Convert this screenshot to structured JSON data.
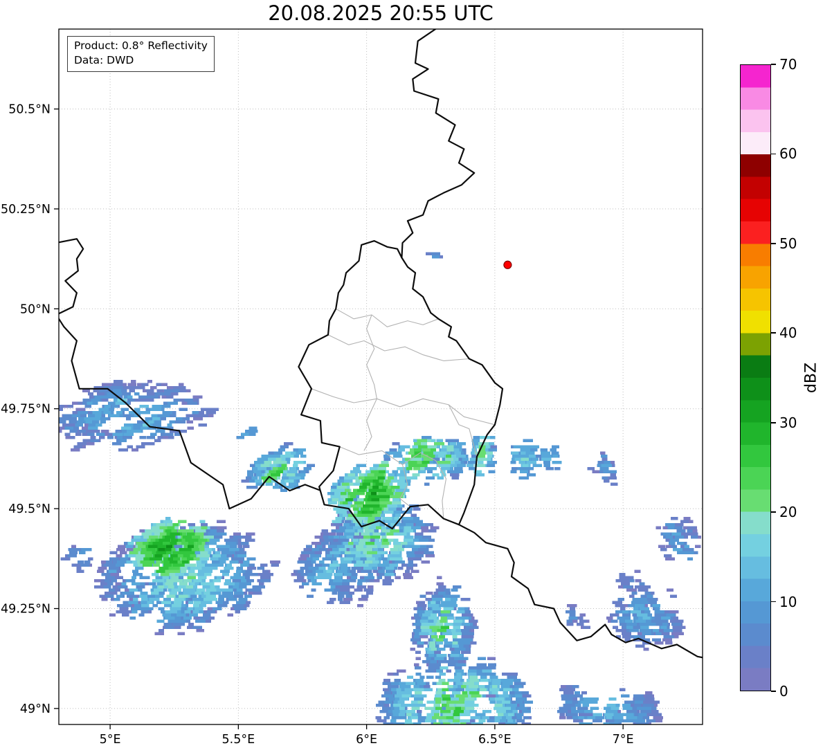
{
  "title": "20.08.2025 20:55 UTC",
  "annotation": {
    "line1": "Product: 0.8° Reflectivity",
    "line2": "Data: DWD"
  },
  "colorbar": {
    "label": "dBZ",
    "min": 0,
    "max": 70,
    "level_step": 2.5,
    "ticks": [
      0,
      10,
      20,
      30,
      40,
      50,
      60,
      70
    ],
    "colors": [
      "#7a7cc3",
      "#6a80c8",
      "#5b8bce",
      "#5598d4",
      "#58a8da",
      "#66bde0",
      "#74d0e0",
      "#85ddcb",
      "#68dd72",
      "#4bd455",
      "#32c73e",
      "#20b52c",
      "#15a321",
      "#0e9019",
      "#0a7c13",
      "#7ca202",
      "#f0e000",
      "#f6c400",
      "#f8a300",
      "#f87d00",
      "#fb2020",
      "#e60303",
      "#c30101",
      "#8e0000",
      "#fcecf9",
      "#fbc3ef",
      "#f98ae4",
      "#f525cf"
    ]
  },
  "axes": {
    "lat_ticks": [
      {
        "value": 50.5,
        "label": "50.5°N"
      },
      {
        "value": 50.25,
        "label": "50.25°N"
      },
      {
        "value": 50.0,
        "label": "50°N"
      },
      {
        "value": 49.75,
        "label": "49.75°N"
      },
      {
        "value": 49.5,
        "label": "49.5°N"
      },
      {
        "value": 49.25,
        "label": "49.25°N"
      },
      {
        "value": 49.0,
        "label": "49°N"
      }
    ],
    "lon_ticks": [
      {
        "value": 5.0,
        "label": "5°E"
      },
      {
        "value": 5.5,
        "label": "5.5°E"
      },
      {
        "value": 6.0,
        "label": "6°E"
      },
      {
        "value": 6.5,
        "label": "6.5°E"
      },
      {
        "value": 7.0,
        "label": "7°E"
      }
    ]
  },
  "map": {
    "extent": {
      "lon_min": 4.8,
      "lon_max": 7.31,
      "lat_min": 48.96,
      "lat_max": 50.7
    },
    "borders_country": [
      {
        "name": "belgium-germany",
        "points": [
          [
            6.28,
            50.705
          ],
          [
            6.2,
            50.67
          ],
          [
            6.19,
            50.615
          ],
          [
            6.24,
            50.6
          ],
          [
            6.18,
            50.575
          ],
          [
            6.185,
            50.545
          ],
          [
            6.28,
            50.525
          ],
          [
            6.27,
            50.49
          ],
          [
            6.345,
            50.46
          ],
          [
            6.32,
            50.42
          ],
          [
            6.38,
            50.4
          ],
          [
            6.36,
            50.365
          ],
          [
            6.42,
            50.34
          ],
          [
            6.37,
            50.31
          ],
          [
            6.3,
            50.29
          ],
          [
            6.24,
            50.27
          ],
          [
            6.22,
            50.235
          ],
          [
            6.16,
            50.22
          ],
          [
            6.18,
            50.19
          ],
          [
            6.14,
            50.165
          ],
          [
            6.137,
            50.128
          ]
        ]
      },
      {
        "name": "luxembourg",
        "points": [
          [
            6.137,
            50.128
          ],
          [
            6.12,
            50.15
          ],
          [
            6.08,
            50.155
          ],
          [
            6.03,
            50.17
          ],
          [
            5.98,
            50.16
          ],
          [
            5.97,
            50.12
          ],
          [
            5.92,
            50.09
          ],
          [
            5.91,
            50.06
          ],
          [
            5.89,
            50.04
          ],
          [
            5.88,
            50.0
          ],
          [
            5.855,
            49.97
          ],
          [
            5.85,
            49.935
          ],
          [
            5.775,
            49.91
          ],
          [
            5.735,
            49.855
          ],
          [
            5.785,
            49.8
          ],
          [
            5.745,
            49.735
          ],
          [
            5.82,
            49.72
          ],
          [
            5.825,
            49.665
          ],
          [
            5.895,
            49.655
          ],
          [
            5.87,
            49.595
          ],
          [
            5.815,
            49.555
          ],
          [
            5.835,
            49.51
          ],
          [
            5.93,
            49.5
          ],
          [
            5.98,
            49.455
          ],
          [
            6.05,
            49.47
          ],
          [
            6.1,
            49.45
          ],
          [
            6.17,
            49.505
          ],
          [
            6.24,
            49.51
          ],
          [
            6.3,
            49.475
          ],
          [
            6.36,
            49.46
          ],
          [
            6.38,
            49.49
          ],
          [
            6.42,
            49.56
          ],
          [
            6.43,
            49.63
          ],
          [
            6.47,
            49.685
          ],
          [
            6.5,
            49.71
          ],
          [
            6.52,
            49.76
          ],
          [
            6.53,
            49.8
          ],
          [
            6.5,
            49.815
          ],
          [
            6.45,
            49.86
          ],
          [
            6.4,
            49.875
          ],
          [
            6.35,
            49.92
          ],
          [
            6.32,
            49.93
          ],
          [
            6.33,
            49.955
          ],
          [
            6.28,
            49.975
          ],
          [
            6.25,
            49.99
          ],
          [
            6.22,
            50.03
          ],
          [
            6.18,
            50.05
          ],
          [
            6.19,
            50.09
          ],
          [
            6.16,
            50.105
          ],
          [
            6.137,
            50.128
          ]
        ]
      },
      {
        "name": "france-belgium",
        "points": [
          [
            4.79,
            50.165
          ],
          [
            4.87,
            50.175
          ],
          [
            4.895,
            50.15
          ],
          [
            4.87,
            50.125
          ],
          [
            4.875,
            50.095
          ],
          [
            4.825,
            50.07
          ],
          [
            4.87,
            50.04
          ],
          [
            4.855,
            50.005
          ],
          [
            4.79,
            49.985
          ],
          [
            4.82,
            49.955
          ],
          [
            4.87,
            49.92
          ],
          [
            4.85,
            49.87
          ],
          [
            4.88,
            49.8
          ],
          [
            4.99,
            49.8
          ],
          [
            5.06,
            49.765
          ],
          [
            5.155,
            49.705
          ],
          [
            5.27,
            49.695
          ],
          [
            5.315,
            49.615
          ],
          [
            5.44,
            49.56
          ],
          [
            5.465,
            49.5
          ],
          [
            5.55,
            49.525
          ],
          [
            5.62,
            49.58
          ],
          [
            5.7,
            49.545
          ],
          [
            5.76,
            49.56
          ],
          [
            5.818,
            49.546
          ]
        ]
      },
      {
        "name": "france-germany",
        "points": [
          [
            6.36,
            49.46
          ],
          [
            6.42,
            49.44
          ],
          [
            6.465,
            49.415
          ],
          [
            6.55,
            49.4
          ],
          [
            6.575,
            49.365
          ],
          [
            6.565,
            49.33
          ],
          [
            6.63,
            49.3
          ],
          [
            6.655,
            49.26
          ],
          [
            6.73,
            49.25
          ],
          [
            6.755,
            49.215
          ],
          [
            6.82,
            49.17
          ],
          [
            6.875,
            49.18
          ],
          [
            6.93,
            49.21
          ],
          [
            6.955,
            49.185
          ],
          [
            7.01,
            49.165
          ],
          [
            7.06,
            49.175
          ],
          [
            7.15,
            49.15
          ],
          [
            7.21,
            49.16
          ],
          [
            7.29,
            49.13
          ],
          [
            7.33,
            49.125
          ]
        ]
      }
    ],
    "borders_region": [
      [
        [
          5.88,
          50.0
        ],
        [
          5.95,
          49.975
        ],
        [
          6.02,
          49.985
        ],
        [
          6.08,
          49.955
        ],
        [
          6.16,
          49.97
        ],
        [
          6.22,
          49.96
        ],
        [
          6.28,
          49.975
        ]
      ],
      [
        [
          5.85,
          49.935
        ],
        [
          5.93,
          49.91
        ],
        [
          5.99,
          49.92
        ],
        [
          6.07,
          49.895
        ],
        [
          6.15,
          49.905
        ],
        [
          6.22,
          49.885
        ],
        [
          6.3,
          49.87
        ],
        [
          6.4,
          49.875
        ]
      ],
      [
        [
          5.785,
          49.8
        ],
        [
          5.87,
          49.78
        ],
        [
          5.95,
          49.765
        ],
        [
          6.04,
          49.775
        ],
        [
          6.13,
          49.755
        ],
        [
          6.22,
          49.775
        ],
        [
          6.32,
          49.76
        ],
        [
          6.38,
          49.73
        ],
        [
          6.44,
          49.72
        ],
        [
          6.5,
          49.71
        ]
      ],
      [
        [
          6.02,
          49.985
        ],
        [
          6.0,
          49.95
        ],
        [
          6.03,
          49.9
        ],
        [
          6.0,
          49.86
        ],
        [
          6.03,
          49.81
        ],
        [
          6.04,
          49.775
        ]
      ],
      [
        [
          6.04,
          49.775
        ],
        [
          6.0,
          49.72
        ],
        [
          6.02,
          49.68
        ],
        [
          5.99,
          49.645
        ]
      ],
      [
        [
          5.895,
          49.655
        ],
        [
          5.97,
          49.635
        ],
        [
          6.06,
          49.645
        ],
        [
          6.14,
          49.61
        ],
        [
          6.21,
          49.64
        ],
        [
          6.27,
          49.62
        ]
      ],
      [
        [
          6.14,
          49.61
        ],
        [
          6.16,
          49.56
        ],
        [
          6.13,
          49.525
        ],
        [
          6.17,
          49.505
        ]
      ],
      [
        [
          6.27,
          49.62
        ],
        [
          6.31,
          49.575
        ],
        [
          6.295,
          49.52
        ],
        [
          6.3,
          49.475
        ]
      ],
      [
        [
          6.32,
          49.76
        ],
        [
          6.36,
          49.71
        ],
        [
          6.4,
          49.7
        ],
        [
          6.43,
          49.63
        ]
      ]
    ]
  },
  "chart_data": {
    "type": "heatmap",
    "title": "20.08.2025 20:55 UTC",
    "units": "dBZ",
    "value_range": [
      0,
      70
    ],
    "legend_position": "right",
    "grid": true,
    "radar_site": {
      "lon": 6.55,
      "lat": 50.11,
      "color": "#ff0000",
      "edge_color": "#7f0000"
    },
    "echo_clusters": [
      {
        "name": "west-band",
        "center": [
          5.05,
          49.735
        ],
        "rx": 0.3,
        "ry": 0.082,
        "base_dbz": 3,
        "peak_dbz": 16,
        "streaks": 90,
        "seed": 11,
        "len": 1.25
      },
      {
        "name": "west-small-cell",
        "center": [
          5.52,
          49.685
        ],
        "rx": 0.04,
        "ry": 0.016,
        "base_dbz": 7,
        "peak_dbz": 12,
        "streaks": 6,
        "seed": 12,
        "len": 0.5
      },
      {
        "name": "arlon-cell",
        "center": [
          5.645,
          49.6
        ],
        "rx": 0.095,
        "ry": 0.048,
        "base_dbz": 8,
        "peak_dbz": 27,
        "streaks": 34,
        "seed": 13,
        "len": 1
      },
      {
        "name": "center-core",
        "center": [
          5.99,
          49.53
        ],
        "rx": 0.145,
        "ry": 0.068,
        "base_dbz": 13,
        "peak_dbz": 33,
        "streaks": 90,
        "seed": 14,
        "len": 1
      },
      {
        "name": "center-south",
        "center": [
          6.03,
          49.42
        ],
        "rx": 0.21,
        "ry": 0.085,
        "base_dbz": 4,
        "peak_dbz": 26,
        "streaks": 100,
        "seed": 15,
        "len": 1.1
      },
      {
        "name": "sauer-band",
        "center": [
          6.21,
          49.625
        ],
        "rx": 0.16,
        "ry": 0.034,
        "base_dbz": 9,
        "peak_dbz": 28,
        "streaks": 46,
        "seed": 16,
        "len": 1
      },
      {
        "name": "echternach-cell",
        "center": [
          6.44,
          49.635
        ],
        "rx": 0.05,
        "ry": 0.024,
        "base_dbz": 9,
        "peak_dbz": 26,
        "streaks": 13,
        "seed": 17,
        "len": 1
      },
      {
        "name": "east-cell-1",
        "center": [
          6.6,
          49.63
        ],
        "rx": 0.05,
        "ry": 0.02,
        "base_dbz": 10,
        "peak_dbz": 24,
        "streaks": 11,
        "seed": 18,
        "len": 1
      },
      {
        "name": "east-cell-2",
        "center": [
          6.705,
          49.625
        ],
        "rx": 0.038,
        "ry": 0.016,
        "base_dbz": 8,
        "peak_dbz": 16,
        "streaks": 7,
        "seed": 19,
        "len": 0.8
      },
      {
        "name": "east-cell-3",
        "center": [
          6.92,
          49.6
        ],
        "rx": 0.05,
        "ry": 0.028,
        "base_dbz": 4,
        "peak_dbz": 13,
        "streaks": 10,
        "seed": 20,
        "len": 0.8
      },
      {
        "name": "southwest-core",
        "center": [
          5.22,
          49.4
        ],
        "rx": 0.145,
        "ry": 0.062,
        "base_dbz": 17,
        "peak_dbz": 34,
        "streaks": 90,
        "seed": 21,
        "len": 1
      },
      {
        "name": "southwest-band",
        "center": [
          5.27,
          49.33
        ],
        "rx": 0.33,
        "ry": 0.125,
        "base_dbz": 3,
        "peak_dbz": 23,
        "streaks": 165,
        "seed": 22,
        "len": 1.15
      },
      {
        "name": "south-mid-band",
        "center": [
          5.87,
          49.35
        ],
        "rx": 0.17,
        "ry": 0.085,
        "base_dbz": 3,
        "peak_dbz": 17,
        "streaks": 70,
        "seed": 23,
        "len": 1
      },
      {
        "name": "south-cell",
        "center": [
          6.28,
          49.2
        ],
        "rx": 0.115,
        "ry": 0.095,
        "base_dbz": 4,
        "peak_dbz": 25,
        "streaks": 72,
        "seed": 24,
        "len": 1
      },
      {
        "name": "bottom-band",
        "center": [
          6.33,
          49.01
        ],
        "rx": 0.3,
        "ry": 0.085,
        "base_dbz": 6,
        "peak_dbz": 27,
        "streaks": 125,
        "seed": 25,
        "len": 1.1
      },
      {
        "name": "bottom-right-band",
        "center": [
          6.92,
          48.995
        ],
        "rx": 0.2,
        "ry": 0.05,
        "base_dbz": 4,
        "peak_dbz": 16,
        "streaks": 58,
        "seed": 26,
        "len": 1
      },
      {
        "name": "east-band",
        "center": [
          7.08,
          49.23
        ],
        "rx": 0.15,
        "ry": 0.07,
        "base_dbz": 3,
        "peak_dbz": 14,
        "streaks": 50,
        "seed": 27,
        "len": 1
      },
      {
        "name": "right-cells",
        "center": [
          7.22,
          49.41
        ],
        "rx": 0.085,
        "ry": 0.045,
        "base_dbz": 4,
        "peak_dbz": 13,
        "streaks": 16,
        "seed": 28,
        "len": 0.9
      },
      {
        "name": "north-dash",
        "center": [
          6.245,
          50.138
        ],
        "rx": 0.028,
        "ry": 0.006,
        "base_dbz": 5,
        "peak_dbz": 8,
        "streaks": 3,
        "seed": 29,
        "len": 0.5
      },
      {
        "name": "east-dash",
        "center": [
          6.81,
          49.225
        ],
        "rx": 0.045,
        "ry": 0.02,
        "base_dbz": 3,
        "peak_dbz": 9,
        "streaks": 8,
        "seed": 30,
        "len": 0.6
      },
      {
        "name": "west-edge-cell",
        "center": [
          4.86,
          49.38
        ],
        "rx": 0.05,
        "ry": 0.028,
        "base_dbz": 4,
        "peak_dbz": 12,
        "streaks": 10,
        "seed": 31,
        "len": 0.8
      },
      {
        "name": "right-mid-dashes",
        "center": [
          7.03,
          49.32
        ],
        "rx": 0.06,
        "ry": 0.024,
        "base_dbz": 3,
        "peak_dbz": 9,
        "streaks": 9,
        "seed": 32,
        "len": 0.6
      }
    ]
  }
}
